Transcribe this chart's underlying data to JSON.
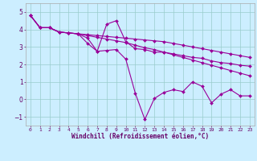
{
  "background_color": "#cceeff",
  "grid_color": "#99cccc",
  "line_color": "#990099",
  "marker": "D",
  "markersize": 2.0,
  "linewidth": 0.8,
  "xlim": [
    -0.5,
    23.5
  ],
  "ylim": [
    -1.5,
    5.5
  ],
  "yticks": [
    -1,
    0,
    1,
    2,
    3,
    4,
    5
  ],
  "xticks": [
    0,
    1,
    2,
    3,
    4,
    5,
    6,
    7,
    8,
    9,
    10,
    11,
    12,
    13,
    14,
    15,
    16,
    17,
    18,
    19,
    20,
    21,
    22,
    23
  ],
  "xlabel": "Windchill (Refroidissement éolien,°C)",
  "xlabel_fontsize": 5.5,
  "ytick_fontsize": 5.5,
  "xtick_fontsize": 4.5,
  "series": [
    [
      4.8,
      4.1,
      4.1,
      3.85,
      3.8,
      3.75,
      3.2,
      2.75,
      2.8,
      2.85,
      2.3,
      0.35,
      -1.15,
      0.05,
      0.4,
      0.55,
      0.45,
      1.0,
      0.75,
      -0.2,
      0.3,
      0.55,
      0.2,
      0.2
    ],
    [
      4.8,
      4.1,
      4.1,
      3.85,
      3.8,
      3.75,
      3.5,
      2.75,
      4.3,
      4.5,
      3.3,
      2.9,
      2.85,
      2.7,
      2.7,
      2.6,
      2.5,
      2.4,
      2.35,
      2.2,
      2.1,
      2.05,
      1.95,
      1.9
    ],
    [
      4.8,
      4.1,
      4.1,
      3.85,
      3.8,
      3.75,
      3.7,
      3.65,
      3.6,
      3.55,
      3.5,
      3.45,
      3.4,
      3.35,
      3.3,
      3.2,
      3.1,
      3.0,
      2.9,
      2.8,
      2.7,
      2.6,
      2.5,
      2.4
    ],
    [
      4.8,
      4.1,
      4.1,
      3.85,
      3.8,
      3.75,
      3.65,
      3.55,
      3.45,
      3.35,
      3.25,
      3.1,
      2.95,
      2.85,
      2.7,
      2.55,
      2.4,
      2.25,
      2.1,
      1.95,
      1.8,
      1.65,
      1.5,
      1.35
    ]
  ]
}
